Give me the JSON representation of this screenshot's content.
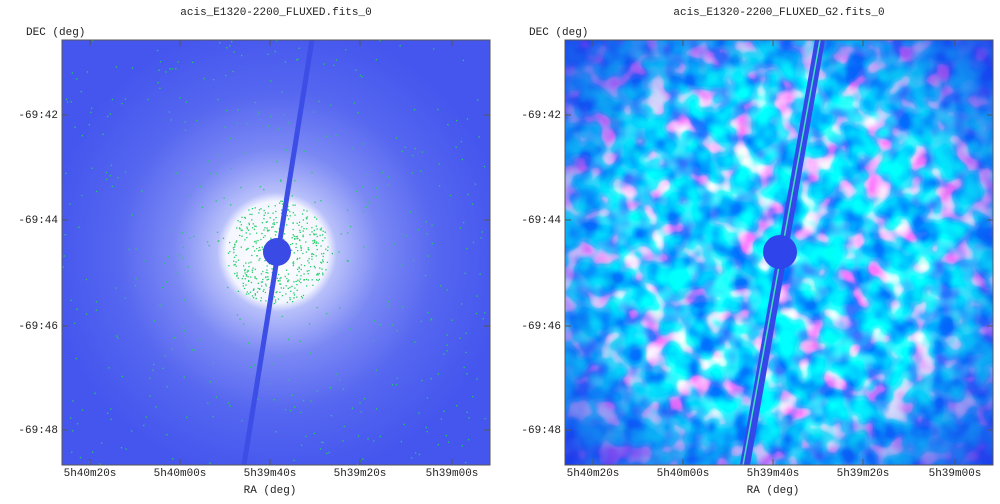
{
  "panels": [
    {
      "title": "acis_E1320-2200_FLUXED.fits_0",
      "y_axis_label": "DEC (deg)",
      "x_axis_label": "RA (deg)",
      "y_tick_labels": [
        "-69:42",
        "-69:44",
        "-69:46",
        "-69:48"
      ],
      "x_tick_labels": [
        "5h40m20s",
        "5h40m00s",
        "5h39m40s",
        "5h39m20s",
        "5h39m00s"
      ]
    },
    {
      "title": "acis_E1320-2200_FLUXED_G2.fits_0",
      "y_axis_label": "DEC (deg)",
      "x_axis_label": "RA (deg)",
      "y_tick_labels": [
        "-69:42",
        "-69:44",
        "-69:46",
        "-69:48"
      ],
      "x_tick_labels": [
        "5h40m20s",
        "5h40m00s",
        "5h39m40s",
        "5h39m20s",
        "5h39m00s"
      ]
    }
  ]
}
